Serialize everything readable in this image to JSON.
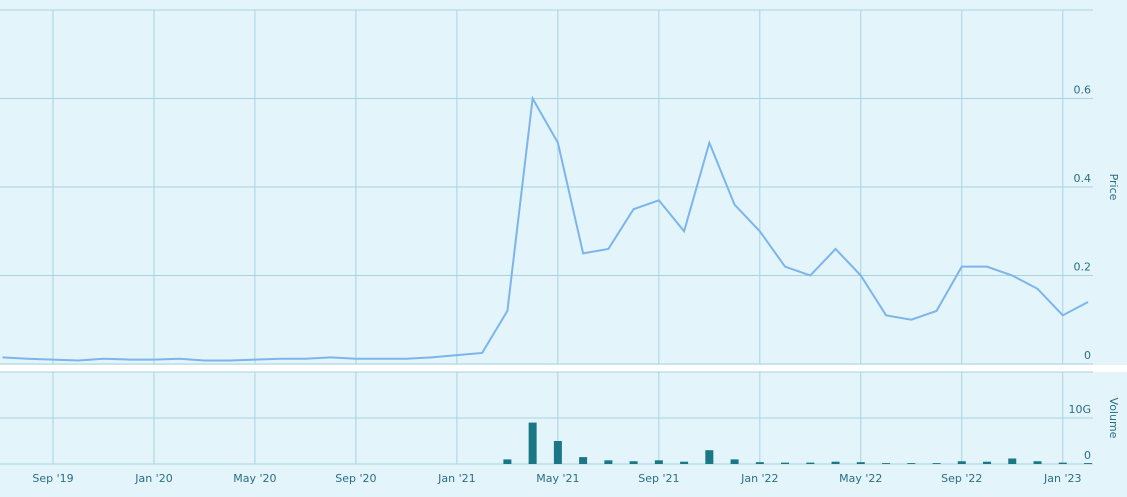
{
  "chart_data": [
    {
      "type": "line",
      "y_label": "Price",
      "color": "#7cb5ec",
      "x": [
        "2019-07",
        "2019-08",
        "2019-09",
        "2019-10",
        "2019-11",
        "2019-12",
        "2020-01",
        "2020-02",
        "2020-03",
        "2020-04",
        "2020-05",
        "2020-06",
        "2020-07",
        "2020-08",
        "2020-09",
        "2020-10",
        "2020-11",
        "2020-12",
        "2021-01",
        "2021-02",
        "2021-03",
        "2021-04",
        "2021-05",
        "2021-06",
        "2021-07",
        "2021-08",
        "2021-09",
        "2021-10",
        "2021-11",
        "2021-12",
        "2022-01",
        "2022-02",
        "2022-03",
        "2022-04",
        "2022-05",
        "2022-06",
        "2022-07",
        "2022-08",
        "2022-09",
        "2022-10",
        "2022-11",
        "2022-12",
        "2023-01",
        "2023-02"
      ],
      "values": [
        0.015,
        0.012,
        0.01,
        0.008,
        0.012,
        0.01,
        0.01,
        0.012,
        0.008,
        0.008,
        0.01,
        0.012,
        0.012,
        0.015,
        0.012,
        0.012,
        0.012,
        0.015,
        0.02,
        0.025,
        0.12,
        0.6,
        0.5,
        0.25,
        0.26,
        0.35,
        0.37,
        0.3,
        0.5,
        0.36,
        0.3,
        0.22,
        0.2,
        0.26,
        0.2,
        0.11,
        0.1,
        0.12,
        0.22,
        0.22,
        0.2,
        0.17,
        0.11,
        0.14
      ],
      "xlim": [
        "2019-07",
        "2023-02"
      ],
      "ylim": [
        0,
        0.8
      ],
      "yticks": [
        0,
        0.2,
        0.4,
        0.6
      ],
      "grid": true
    },
    {
      "type": "bar",
      "y_label": "Volume",
      "color": "#1b7686",
      "x": [
        "2019-07",
        "2019-08",
        "2019-09",
        "2019-10",
        "2019-11",
        "2019-12",
        "2020-01",
        "2020-02",
        "2020-03",
        "2020-04",
        "2020-05",
        "2020-06",
        "2020-07",
        "2020-08",
        "2020-09",
        "2020-10",
        "2020-11",
        "2020-12",
        "2021-01",
        "2021-02",
        "2021-03",
        "2021-04",
        "2021-05",
        "2021-06",
        "2021-07",
        "2021-08",
        "2021-09",
        "2021-10",
        "2021-11",
        "2021-12",
        "2022-01",
        "2022-02",
        "2022-03",
        "2022-04",
        "2022-05",
        "2022-06",
        "2022-07",
        "2022-08",
        "2022-09",
        "2022-10",
        "2022-11",
        "2022-12",
        "2023-01",
        "2023-02"
      ],
      "values": [
        0,
        0,
        0,
        0,
        0,
        0,
        0,
        0,
        0,
        0,
        0,
        0,
        0,
        0,
        0,
        0,
        0,
        0,
        0,
        0,
        1000000000,
        9000000000,
        5000000000,
        1500000000,
        800000000,
        600000000,
        800000000,
        500000000,
        3000000000,
        1000000000,
        400000000,
        300000000,
        300000000,
        500000000,
        400000000,
        200000000,
        200000000,
        200000000,
        600000000,
        500000000,
        1200000000,
        600000000,
        300000000,
        200000000
      ],
      "xlim": [
        "2019-07",
        "2023-02"
      ],
      "xticks": [
        {
          "value": "2019-09",
          "label": "Sep '19"
        },
        {
          "value": "2020-01",
          "label": "Jan '20"
        },
        {
          "value": "2020-05",
          "label": "May '20"
        },
        {
          "value": "2020-09",
          "label": "Sep '20"
        },
        {
          "value": "2021-01",
          "label": "Jan '21"
        },
        {
          "value": "2021-05",
          "label": "May '21"
        },
        {
          "value": "2021-09",
          "label": "Sep '21"
        },
        {
          "value": "2022-01",
          "label": "Jan '22"
        },
        {
          "value": "2022-05",
          "label": "May '22"
        },
        {
          "value": "2022-09",
          "label": "Sep '22"
        },
        {
          "value": "2023-01",
          "label": "Jan '23"
        }
      ],
      "ylim": [
        0,
        20000000000
      ],
      "yticks": [
        0,
        {
          "value": 10000000000,
          "label": "10G"
        }
      ],
      "grid": true
    }
  ]
}
